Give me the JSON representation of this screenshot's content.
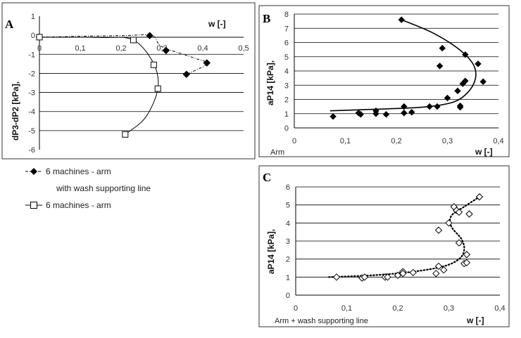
{
  "chart_data": [
    {
      "panel": "A",
      "type": "line",
      "xlabel": "w  [-]",
      "ylabel": "dP3-dP2 [kPa],",
      "xlim": [
        0,
        0.5
      ],
      "ylim": [
        -6,
        1
      ],
      "x_ticks": [
        "0",
        "0,1",
        "0,2",
        "0,3",
        "0,4",
        "0,5"
      ],
      "y_ticks": [
        "1",
        "0",
        "-1",
        "-2",
        "-3",
        "-4",
        "-5",
        "-6"
      ],
      "series": [
        {
          "name": "6 machines - arm",
          "name_line2": "with wash supporting line",
          "marker": "diamond",
          "line": "dash-dot",
          "points": [
            [
              0.0,
              -0.1
            ],
            [
              0.27,
              -0.02
            ],
            [
              0.31,
              -0.8
            ],
            [
              0.41,
              -1.45
            ],
            [
              0.36,
              -2.05
            ]
          ],
          "curve": [
            [
              0.0,
              -0.1
            ],
            [
              0.2,
              -0.02
            ],
            [
              0.275,
              -0.02
            ],
            [
              0.3,
              -0.6
            ],
            [
              0.38,
              -1.2
            ],
            [
              0.41,
              -1.5
            ],
            [
              0.36,
              -2.05
            ]
          ]
        },
        {
          "name": "6 machines - arm",
          "marker": "square",
          "line": "solid",
          "points": [
            [
              0.0,
              -0.1
            ],
            [
              0.23,
              -0.25
            ],
            [
              0.28,
              -1.55
            ],
            [
              0.29,
              -2.8
            ],
            [
              0.21,
              -5.2
            ]
          ],
          "curve": [
            [
              0.0,
              -0.1
            ],
            [
              0.15,
              -0.12
            ],
            [
              0.23,
              -0.25
            ],
            [
              0.28,
              -1.5
            ],
            [
              0.29,
              -2.8
            ],
            [
              0.26,
              -4.3
            ],
            [
              0.21,
              -5.2
            ]
          ]
        }
      ]
    },
    {
      "panel": "B",
      "type": "scatter",
      "xlabel": "w [-]",
      "ylabel": "aP14 [kPa],",
      "note": "Arm",
      "xlim": [
        0,
        0.4
      ],
      "ylim": [
        0,
        8
      ],
      "x_ticks": [
        "0",
        "0,1",
        "0,2",
        "0,3",
        "0,4"
      ],
      "y_ticks": [
        "0",
        "1",
        "2",
        "3",
        "4",
        "5",
        "6",
        "7",
        "8"
      ],
      "points": [
        [
          0.076,
          0.8
        ],
        [
          0.126,
          1.05
        ],
        [
          0.13,
          0.95
        ],
        [
          0.16,
          1.0
        ],
        [
          0.16,
          1.2
        ],
        [
          0.18,
          0.95
        ],
        [
          0.21,
          7.6
        ],
        [
          0.215,
          1.5
        ],
        [
          0.215,
          1.05
        ],
        [
          0.23,
          1.1
        ],
        [
          0.265,
          1.5
        ],
        [
          0.285,
          4.35
        ],
        [
          0.29,
          5.6
        ],
        [
          0.28,
          1.5
        ],
        [
          0.3,
          2.1
        ],
        [
          0.32,
          2.6
        ],
        [
          0.325,
          1.55
        ],
        [
          0.325,
          1.45
        ],
        [
          0.33,
          3.1
        ],
        [
          0.335,
          3.3
        ],
        [
          0.335,
          5.15
        ],
        [
          0.36,
          4.5
        ],
        [
          0.37,
          3.25
        ]
      ],
      "trend": [
        [
          0.07,
          1.2
        ],
        [
          0.15,
          1.3
        ],
        [
          0.25,
          1.45
        ],
        [
          0.31,
          1.8
        ],
        [
          0.34,
          2.5
        ],
        [
          0.355,
          3.5
        ],
        [
          0.35,
          4.5
        ],
        [
          0.32,
          5.6
        ],
        [
          0.27,
          6.7
        ],
        [
          0.21,
          7.6
        ]
      ]
    },
    {
      "panel": "C",
      "type": "scatter",
      "xlabel": "w [-]",
      "ylabel": "aP14 [kPa],",
      "note": "Arm + wash supporting line",
      "xlim": [
        0,
        0.4
      ],
      "ylim": [
        0,
        6
      ],
      "x_ticks": [
        "0",
        "0,1",
        "0,2",
        "0,3",
        "0,4"
      ],
      "y_ticks": [
        "0",
        "1",
        "2",
        "3",
        "4",
        "5",
        "6"
      ],
      "points": [
        [
          0.08,
          1.0
        ],
        [
          0.13,
          0.95
        ],
        [
          0.135,
          1.0
        ],
        [
          0.175,
          1.0
        ],
        [
          0.18,
          1.0
        ],
        [
          0.2,
          1.1
        ],
        [
          0.21,
          1.3
        ],
        [
          0.21,
          1.2
        ],
        [
          0.23,
          1.25
        ],
        [
          0.275,
          1.2
        ],
        [
          0.28,
          1.6
        ],
        [
          0.28,
          3.6
        ],
        [
          0.29,
          1.4
        ],
        [
          0.3,
          4.0
        ],
        [
          0.31,
          4.9
        ],
        [
          0.315,
          4.7
        ],
        [
          0.32,
          2.9
        ],
        [
          0.32,
          4.6
        ],
        [
          0.33,
          1.75
        ],
        [
          0.335,
          1.8
        ],
        [
          0.335,
          2.25
        ],
        [
          0.34,
          4.5
        ],
        [
          0.36,
          5.45
        ]
      ],
      "trend": [
        [
          0.065,
          1.0
        ],
        [
          0.15,
          1.1
        ],
        [
          0.23,
          1.3
        ],
        [
          0.29,
          1.6
        ],
        [
          0.32,
          2.0
        ],
        [
          0.33,
          2.5
        ],
        [
          0.325,
          3.1
        ],
        [
          0.305,
          3.8
        ],
        [
          0.305,
          4.4
        ],
        [
          0.33,
          4.9
        ],
        [
          0.36,
          5.45
        ]
      ]
    }
  ]
}
